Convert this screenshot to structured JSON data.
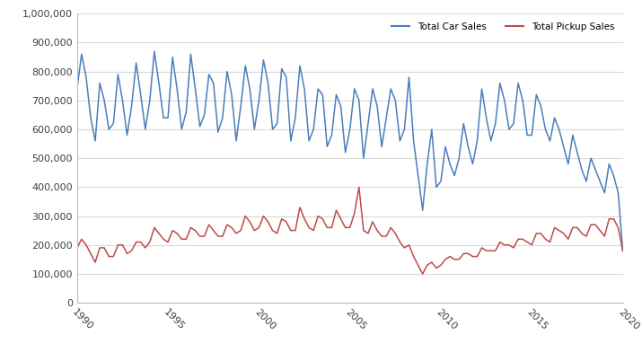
{
  "chart_data": {
    "type": "line",
    "x": [
      1990,
      1990.25,
      1990.5,
      1990.75,
      1991,
      1991.25,
      1991.5,
      1991.75,
      1992,
      1992.25,
      1992.5,
      1992.75,
      1993,
      1993.25,
      1993.5,
      1993.75,
      1994,
      1994.25,
      1994.5,
      1994.75,
      1995,
      1995.25,
      1995.5,
      1995.75,
      1996,
      1996.25,
      1996.5,
      1996.75,
      1997,
      1997.25,
      1997.5,
      1997.75,
      1998,
      1998.25,
      1998.5,
      1998.75,
      1999,
      1999.25,
      1999.5,
      1999.75,
      2000,
      2000.25,
      2000.5,
      2000.75,
      2001,
      2001.25,
      2001.5,
      2001.75,
      2002,
      2002.25,
      2002.5,
      2002.75,
      2003,
      2003.25,
      2003.5,
      2003.75,
      2004,
      2004.25,
      2004.5,
      2004.75,
      2005,
      2005.25,
      2005.5,
      2005.75,
      2006,
      2006.25,
      2006.5,
      2006.75,
      2007,
      2007.25,
      2007.5,
      2007.75,
      2008,
      2008.25,
      2008.5,
      2008.75,
      2009,
      2009.25,
      2009.5,
      2009.75,
      2010,
      2010.25,
      2010.5,
      2010.75,
      2011,
      2011.25,
      2011.5,
      2011.75,
      2012,
      2012.25,
      2012.5,
      2012.75,
      2013,
      2013.25,
      2013.5,
      2013.75,
      2014,
      2014.25,
      2014.5,
      2014.75,
      2015,
      2015.25,
      2015.5,
      2015.75,
      2016,
      2016.25,
      2016.5,
      2016.75,
      2017,
      2017.25,
      2017.5,
      2017.75,
      2018,
      2018.25,
      2018.5,
      2018.75,
      2019,
      2019.25,
      2019.5,
      2019.75,
      2020
    ],
    "series": [
      {
        "name": "Total Car Sales",
        "color": "#4a7ebb",
        "values": [
          740000,
          860000,
          780000,
          640000,
          560000,
          760000,
          700000,
          600000,
          620000,
          790000,
          700000,
          580000,
          680000,
          830000,
          720000,
          600000,
          700000,
          870000,
          760000,
          640000,
          640000,
          850000,
          740000,
          600000,
          660000,
          860000,
          740000,
          610000,
          650000,
          790000,
          760000,
          590000,
          640000,
          800000,
          720000,
          560000,
          680000,
          820000,
          740000,
          600000,
          700000,
          840000,
          760000,
          600000,
          620000,
          810000,
          780000,
          560000,
          640000,
          820000,
          740000,
          560000,
          600000,
          740000,
          720000,
          540000,
          580000,
          720000,
          680000,
          520000,
          600000,
          740000,
          700000,
          500000,
          620000,
          740000,
          680000,
          540000,
          640000,
          740000,
          700000,
          560000,
          600000,
          780000,
          560000,
          440000,
          320000,
          480000,
          600000,
          400000,
          420000,
          540000,
          480000,
          440000,
          500000,
          620000,
          540000,
          480000,
          560000,
          740000,
          640000,
          560000,
          620000,
          760000,
          700000,
          600000,
          620000,
          760000,
          700000,
          580000,
          580000,
          720000,
          680000,
          600000,
          560000,
          640000,
          600000,
          540000,
          480000,
          580000,
          520000,
          460000,
          420000,
          500000,
          460000,
          420000,
          380000,
          480000,
          440000,
          380000,
          180000
        ]
      },
      {
        "name": "Total Pickup Sales",
        "color": "#be4b48",
        "values": [
          190000,
          220000,
          200000,
          170000,
          140000,
          190000,
          190000,
          160000,
          160000,
          200000,
          200000,
          170000,
          180000,
          210000,
          210000,
          190000,
          210000,
          260000,
          240000,
          220000,
          210000,
          250000,
          240000,
          220000,
          220000,
          260000,
          250000,
          230000,
          230000,
          270000,
          250000,
          230000,
          230000,
          270000,
          260000,
          240000,
          250000,
          300000,
          280000,
          250000,
          260000,
          300000,
          280000,
          250000,
          240000,
          290000,
          280000,
          250000,
          250000,
          330000,
          290000,
          260000,
          250000,
          300000,
          290000,
          260000,
          260000,
          320000,
          290000,
          260000,
          260000,
          310000,
          400000,
          250000,
          240000,
          280000,
          250000,
          230000,
          230000,
          260000,
          240000,
          210000,
          190000,
          200000,
          160000,
          130000,
          100000,
          130000,
          140000,
          120000,
          130000,
          150000,
          160000,
          150000,
          150000,
          170000,
          170000,
          160000,
          160000,
          190000,
          180000,
          180000,
          180000,
          210000,
          200000,
          200000,
          190000,
          220000,
          220000,
          210000,
          200000,
          240000,
          240000,
          220000,
          210000,
          260000,
          250000,
          240000,
          220000,
          260000,
          260000,
          240000,
          230000,
          270000,
          270000,
          250000,
          230000,
          290000,
          290000,
          260000,
          180000
        ]
      }
    ],
    "xlim": [
      1990,
      2020
    ],
    "xticks": [
      1990,
      1995,
      2000,
      2005,
      2010,
      2015,
      2020
    ],
    "ylim": [
      0,
      1000000
    ],
    "yticks": [
      0,
      {
        "value": 100000,
        "label": "100,000"
      },
      {
        "value": 200000,
        "label": "200,000"
      },
      {
        "value": 300000,
        "label": "300,000"
      },
      {
        "value": 400000,
        "label": "400,000"
      },
      {
        "value": 500000,
        "label": "500,000"
      },
      {
        "value": 600000,
        "label": "600,000"
      },
      {
        "value": 700000,
        "label": "700,000"
      },
      {
        "value": 800000,
        "label": "800,000"
      },
      {
        "value": 900000,
        "label": "900,000"
      },
      {
        "value": 1000000,
        "label": "1,000,000"
      }
    ],
    "grid": true,
    "legend": "upper right"
  }
}
